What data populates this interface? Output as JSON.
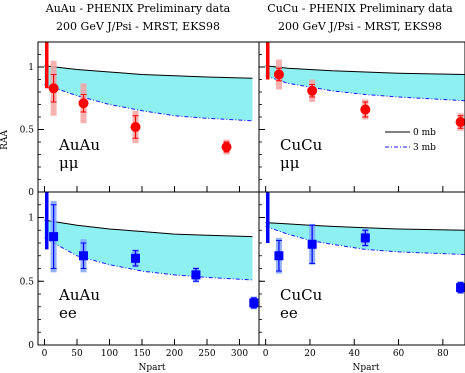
{
  "headers": {
    "left_line1": "AuAu - PHENIX Preliminary data",
    "left_line2": "200 GeV J/Psi - MRST, EKS98",
    "right_line1": "CuCu - PHENIX Preliminary data",
    "right_line2": "200 GeV J/Psi - MRST, EKS98"
  },
  "legend": {
    "solid": "0 mb",
    "dashed": "3 mb",
    "placement": "right, middle of top-right panel"
  },
  "colors": {
    "band": "#8ef0f0",
    "red": "#ff0000",
    "blue": "#0000ff",
    "pink": "#f4a3a3",
    "lightblue": "#7fa4ff"
  },
  "axes": {
    "ylabel": "RAA",
    "xlabel": "Npart",
    "y_ticks": [
      "0",
      "0.5",
      "1"
    ],
    "y_range": [
      0,
      1.2
    ],
    "auau_x_range": [
      -10,
      330
    ],
    "auau_x_ticks": [
      "0",
      "50",
      "100",
      "150",
      "200",
      "250",
      "300"
    ],
    "cucu_x_range": [
      -3,
      90
    ],
    "cucu_x_ticks": [
      "0",
      "20",
      "40",
      "60",
      "80"
    ]
  },
  "chart_data": [
    {
      "type": "scatter",
      "panel": "top-left",
      "label_line1": "AuAu",
      "label_line2": "μμ",
      "marker": "circle",
      "color": "red",
      "x": [
        14,
        60,
        140,
        280
      ],
      "y": [
        0.83,
        0.71,
        0.52,
        0.36
      ],
      "err": [
        0.11,
        0.07,
        0.09,
        0.04
      ],
      "sys": [
        0.22,
        0.16,
        0.13,
        0.06
      ],
      "global_sys": [
        0.83,
        1.2
      ],
      "band_upper": {
        "x": [
          0,
          50,
          100,
          150,
          200,
          250,
          320
        ],
        "y": [
          1.01,
          0.98,
          0.96,
          0.94,
          0.93,
          0.92,
          0.91
        ]
      },
      "band_lower": {
        "x": [
          0,
          50,
          100,
          150,
          200,
          250,
          320
        ],
        "y": [
          0.86,
          0.77,
          0.7,
          0.65,
          0.61,
          0.59,
          0.57
        ]
      }
    },
    {
      "type": "scatter",
      "panel": "top-right",
      "label_line1": "CuCu",
      "label_line2": "μμ",
      "marker": "circle",
      "color": "red",
      "x": [
        6,
        21,
        45,
        88
      ],
      "y": [
        0.94,
        0.81,
        0.66,
        0.56
      ],
      "err": [
        0.05,
        0.05,
        0.06,
        0.05
      ],
      "sys": [
        0.12,
        0.09,
        0.08,
        0.07
      ],
      "global_sys": [
        0.9,
        1.2
      ],
      "band_upper": {
        "x": [
          0,
          10,
          20,
          30,
          45,
          60,
          90
        ],
        "y": [
          1.01,
          0.99,
          0.98,
          0.97,
          0.96,
          0.95,
          0.94
        ]
      },
      "band_lower": {
        "x": [
          0,
          10,
          20,
          30,
          45,
          60,
          90
        ],
        "y": [
          0.93,
          0.87,
          0.84,
          0.81,
          0.78,
          0.76,
          0.73
        ]
      }
    },
    {
      "type": "scatter",
      "panel": "bottom-left",
      "label_line1": "AuAu",
      "label_line2": "ee",
      "marker": "square",
      "color": "blue",
      "x": [
        14,
        60,
        140,
        233,
        322
      ],
      "y": [
        0.85,
        0.7,
        0.68,
        0.55,
        0.33
      ],
      "err": [
        0.25,
        0.1,
        0.06,
        0.05,
        0.04
      ],
      "sys": [
        0.28,
        0.13,
        0.07,
        0.06,
        0.05
      ],
      "global_sys": [
        0.75,
        1.2
      ],
      "band_upper": {
        "x": [
          0,
          50,
          100,
          150,
          200,
          250,
          320
        ],
        "y": [
          0.98,
          0.94,
          0.91,
          0.89,
          0.87,
          0.86,
          0.85
        ]
      },
      "band_lower": {
        "x": [
          0,
          50,
          100,
          150,
          200,
          250,
          320
        ],
        "y": [
          0.84,
          0.7,
          0.63,
          0.58,
          0.55,
          0.53,
          0.51
        ]
      }
    },
    {
      "type": "scatter",
      "panel": "bottom-right",
      "label_line1": "CuCu",
      "label_line2": "ee",
      "marker": "square",
      "color": "blue",
      "x": [
        6,
        21,
        45,
        88
      ],
      "y": [
        0.7,
        0.79,
        0.84,
        0.45
      ],
      "err": [
        0.12,
        0.15,
        0.06,
        0.04
      ],
      "sys": [
        0.14,
        0.16,
        0.07,
        0.05
      ],
      "global_sys": [
        0.8,
        1.2
      ],
      "band_upper": {
        "x": [
          0,
          10,
          20,
          30,
          45,
          60,
          90
        ],
        "y": [
          0.96,
          0.95,
          0.94,
          0.93,
          0.92,
          0.91,
          0.9
        ]
      },
      "band_lower": {
        "x": [
          0,
          10,
          20,
          30,
          45,
          60,
          90
        ],
        "y": [
          0.93,
          0.87,
          0.82,
          0.79,
          0.75,
          0.73,
          0.71
        ]
      }
    }
  ]
}
